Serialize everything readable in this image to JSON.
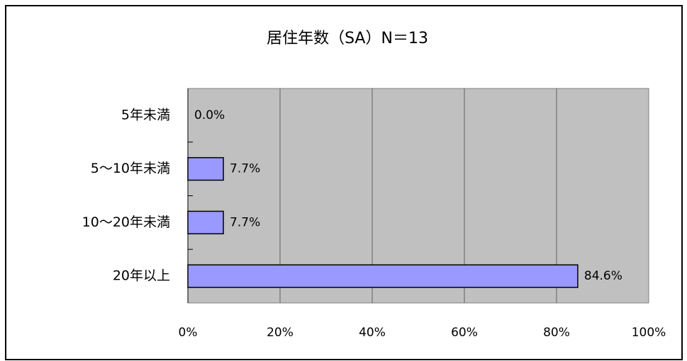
{
  "chart_data": {
    "type": "bar",
    "orientation": "horizontal",
    "title": "居住年数（SA）N＝13",
    "categories": [
      "5年未満",
      "5～10年未満",
      "10～20年未満",
      "20年以上"
    ],
    "values": [
      0,
      7.7,
      7.7,
      84.6
    ],
    "value_labels": [
      "0.0%",
      "7.7%",
      "7.7%",
      "84.6%"
    ],
    "color": "#9999ff",
    "xlim": [
      0,
      100
    ],
    "xticks": [
      {
        "value": 0,
        "label": "0%"
      },
      {
        "value": 20,
        "label": "20%"
      },
      {
        "value": 40,
        "label": "40%"
      },
      {
        "value": 60,
        "label": "60%"
      },
      {
        "value": 80,
        "label": "80%"
      },
      {
        "value": 100,
        "label": "100%"
      }
    ],
    "grid": true
  }
}
